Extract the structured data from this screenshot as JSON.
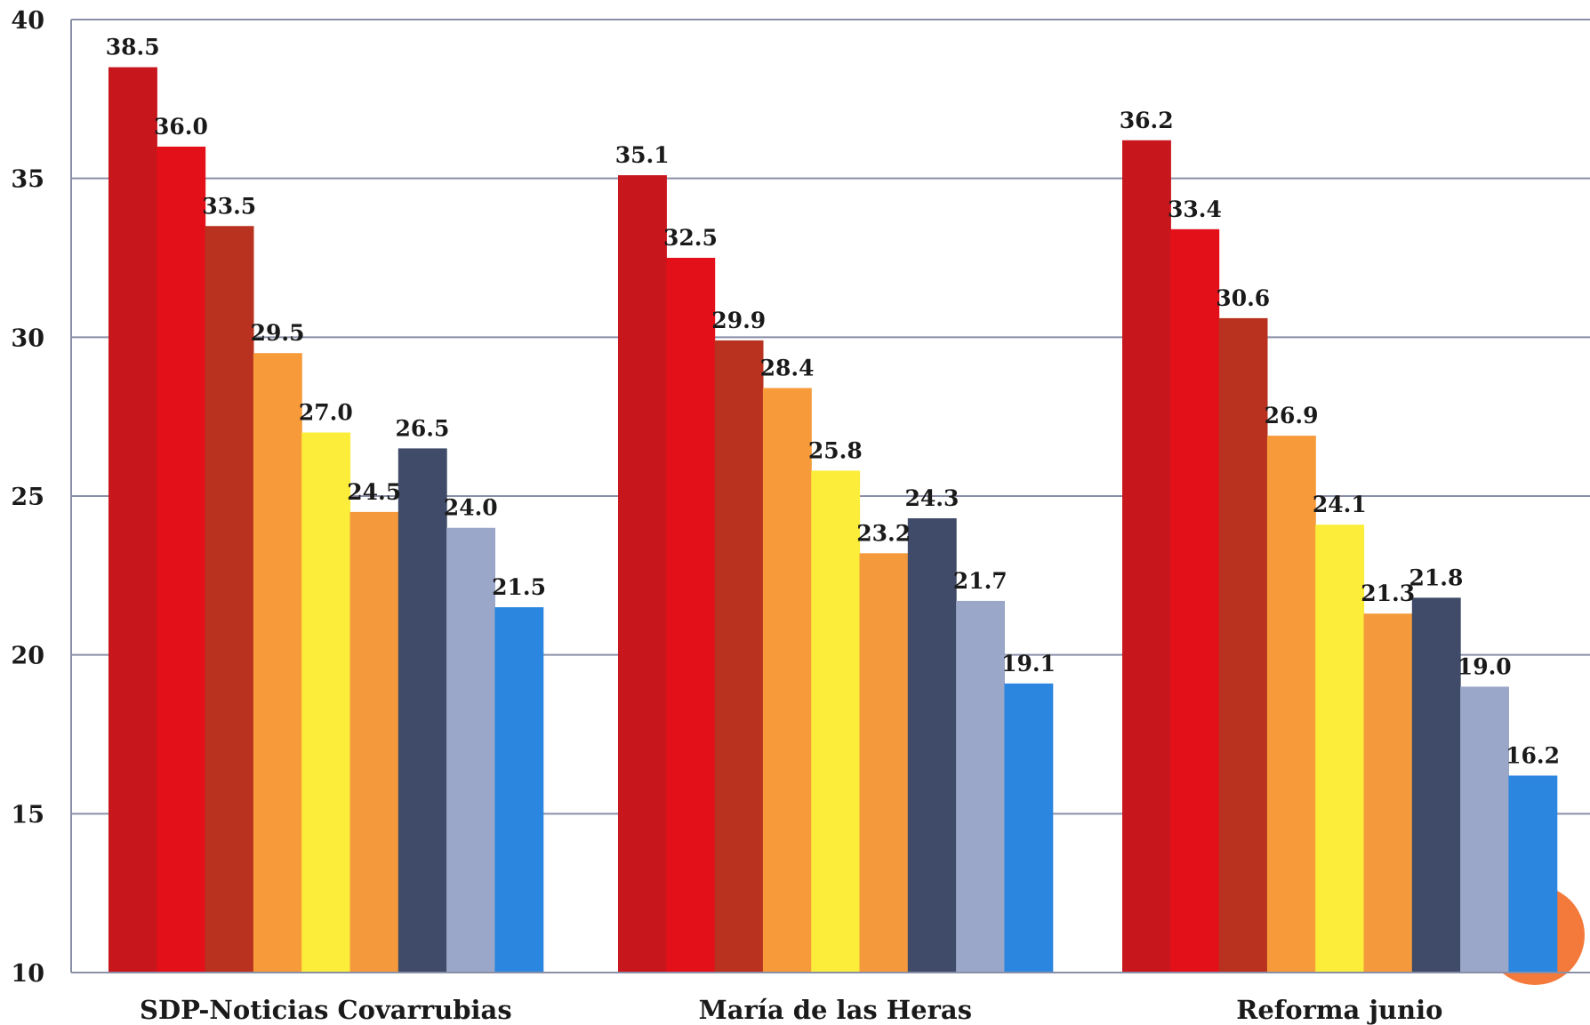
{
  "chart_data": {
    "type": "bar",
    "title": "",
    "xlabel": "",
    "ylabel": "",
    "ylim": [
      10,
      40
    ],
    "yticks": [
      10,
      15,
      20,
      25,
      30,
      35,
      40
    ],
    "grid": true,
    "categories": [
      "SDP-Noticias Covarrubias",
      "María de las Heras",
      "Reforma junio"
    ],
    "series": [
      {
        "color": "#c8161d",
        "values": [
          38.5,
          35.1,
          36.2
        ]
      },
      {
        "color": "#e3101a",
        "values": [
          36.0,
          32.5,
          33.4
        ]
      },
      {
        "color": "#b8321f",
        "values": [
          33.5,
          29.9,
          30.6
        ]
      },
      {
        "color": "#f79a3a",
        "values": [
          29.5,
          28.4,
          26.9
        ]
      },
      {
        "color": "#fbed3a",
        "values": [
          27.0,
          25.8,
          24.1
        ]
      },
      {
        "color": "#f49a3c",
        "values": [
          24.5,
          23.2,
          21.3
        ]
      },
      {
        "color": "#3f4b68",
        "values": [
          26.5,
          24.3,
          21.8
        ]
      },
      {
        "color": "#9ba7c8",
        "values": [
          24.0,
          21.7,
          19.0
        ]
      },
      {
        "color": "#2b86df",
        "values": [
          21.5,
          19.1,
          16.2
        ]
      }
    ],
    "data_labels": [
      [
        "38.5",
        "36.0",
        "33.5",
        "29.5",
        "27.0",
        "24.5",
        "26.5",
        "24.0",
        "21.5"
      ],
      [
        "35.1",
        "32.5",
        "29.9",
        "28.4",
        "25.8",
        "23.2",
        "24.3",
        "21.7",
        "19.1"
      ],
      [
        "36.2",
        "33.4",
        "30.6",
        "26.9",
        "24.1",
        "21.3",
        "21.8",
        "19.0",
        "16.2"
      ]
    ],
    "decoration_color": "#f47a3c"
  }
}
